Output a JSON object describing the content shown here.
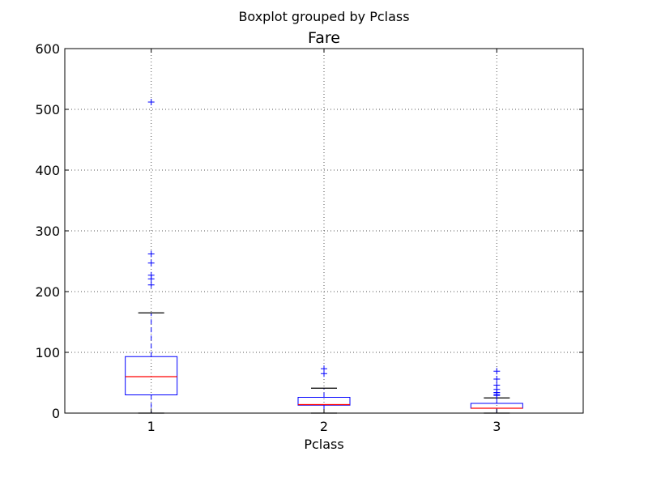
{
  "chart_data": {
    "type": "boxplot",
    "suptitle": "Boxplot grouped by Pclass",
    "title": "Fare",
    "xlabel": "Pclass",
    "ylabel": "",
    "ylim": [
      0,
      600
    ],
    "yticks": [
      0,
      100,
      200,
      300,
      400,
      500,
      600
    ],
    "categories": [
      "1",
      "2",
      "3"
    ],
    "grid": true,
    "boxes": [
      {
        "category": "1",
        "whisker_low": 0,
        "q1": 30,
        "median": 60,
        "q3": 93,
        "whisker_high": 165,
        "outliers": [
          211,
          221,
          227,
          247,
          262,
          512
        ]
      },
      {
        "category": "2",
        "whisker_low": 0,
        "q1": 13,
        "median": 14,
        "q3": 26,
        "whisker_high": 41,
        "outliers": [
          65,
          73
        ]
      },
      {
        "category": "3",
        "whisker_low": 0,
        "q1": 8,
        "median": 8,
        "q3": 16,
        "whisker_high": 25,
        "outliers": [
          29,
          31,
          34,
          39,
          46,
          56,
          69
        ]
      }
    ],
    "colors": {
      "box": "#0000ff",
      "whisker": "#0000ff",
      "cap": "#000000",
      "median": "#ff0000",
      "flier": "#0000ff",
      "grid": "#555555",
      "axes": "#000000"
    }
  }
}
